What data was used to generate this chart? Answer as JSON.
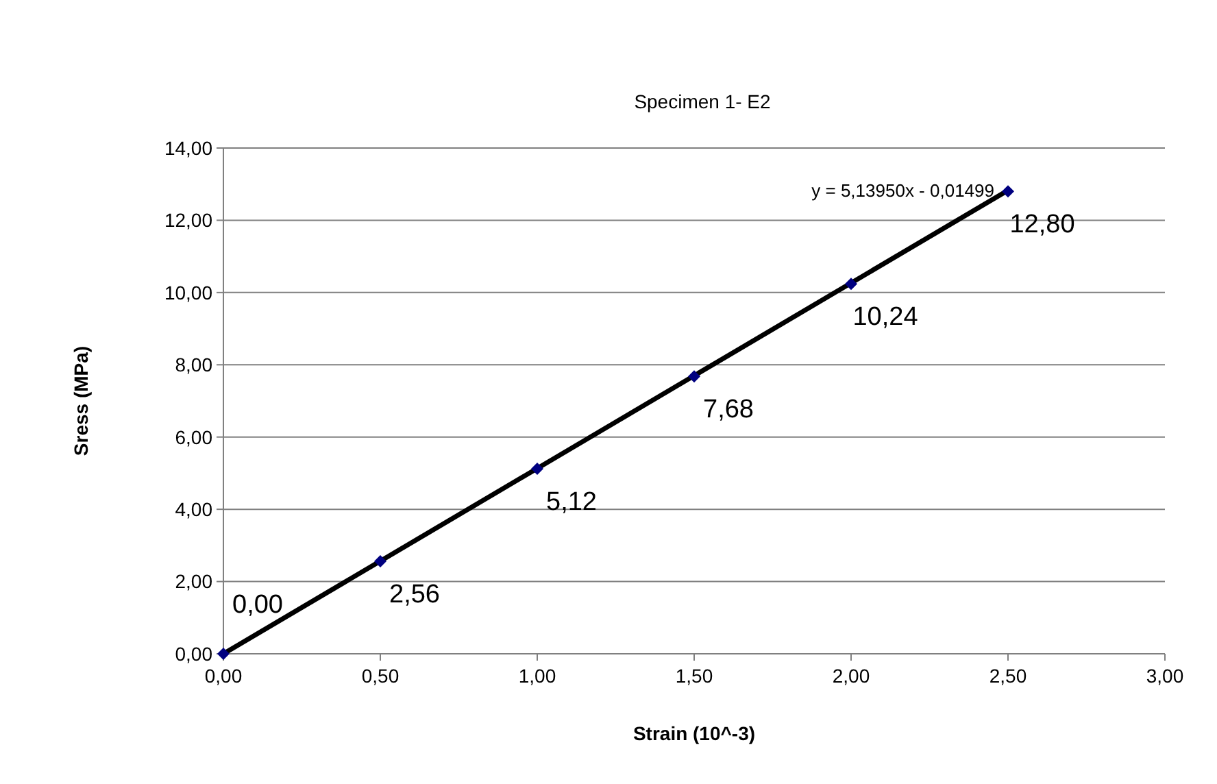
{
  "chart_data": {
    "type": "scatter",
    "title": "Specimen 1- E2",
    "xlabel": "Strain (10^-3)",
    "ylabel": "Sress (MPa)",
    "xlim": [
      0,
      3
    ],
    "xticks": [
      {
        "value": 0,
        "label": "0,00"
      },
      {
        "value": 0.5,
        "label": "0,50"
      },
      {
        "value": 1,
        "label": "1,00"
      },
      {
        "value": 1.5,
        "label": "1,50"
      },
      {
        "value": 2,
        "label": "2,00"
      },
      {
        "value": 2.5,
        "label": "2,50"
      },
      {
        "value": 3,
        "label": "3,00"
      }
    ],
    "ylim": [
      0,
      14
    ],
    "yticks": [
      {
        "value": 0,
        "label": "0,00"
      },
      {
        "value": 2,
        "label": "2,00"
      },
      {
        "value": 4,
        "label": "4,00"
      },
      {
        "value": 6,
        "label": "6,00"
      },
      {
        "value": 8,
        "label": "8,00"
      },
      {
        "value": 10,
        "label": "10,00"
      },
      {
        "value": 12,
        "label": "12,00"
      },
      {
        "value": 14,
        "label": "14,00"
      }
    ],
    "grid": "y",
    "marker": "diamond",
    "series": [
      {
        "color": "#000080",
        "x": [
          0,
          0.5,
          1,
          1.5,
          2,
          2.5
        ],
        "values": [
          0,
          2.56,
          5.12,
          7.68,
          10.24,
          12.8
        ],
        "value_labels": [
          "0,00",
          "2,56",
          "5,12",
          "7,68",
          "10,24",
          "12,80"
        ]
      },
      {
        "type": "line",
        "color": "#000000",
        "marker": "none",
        "line_style": "solid",
        "x": [
          0,
          2.5
        ],
        "values": [
          0,
          12.83
        ]
      }
    ],
    "annotations": [
      {
        "text": "y = 5,13950x - 0,01499",
        "x": 2.5,
        "y": 12.8
      }
    ]
  }
}
